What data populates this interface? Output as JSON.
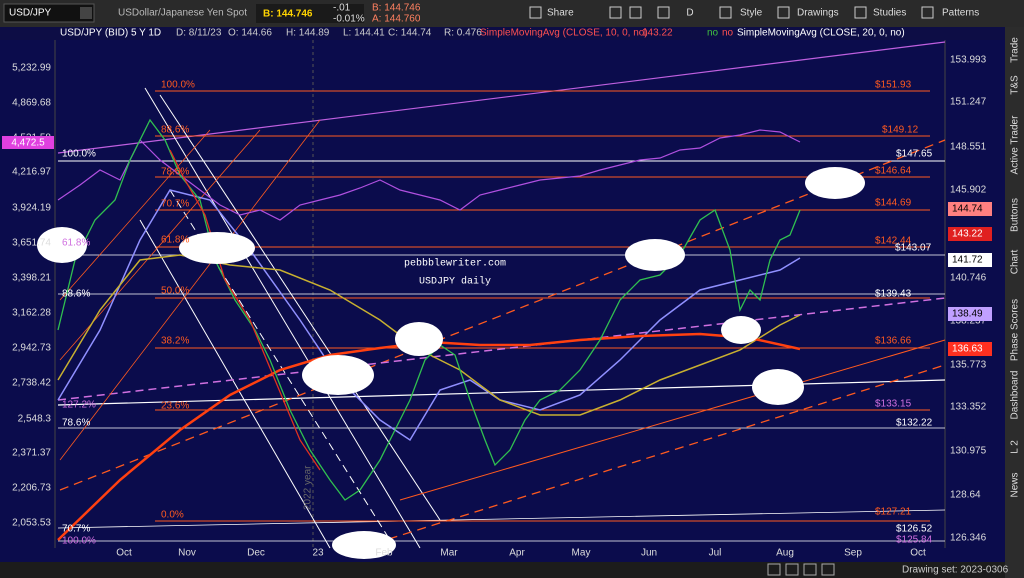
{
  "toolbar": {
    "symbol": "USD/JPY",
    "description": "USDollar/Japanese Yen Spot",
    "bid": "B: 144.746",
    "change": "-.01",
    "change_pct": "-0.01%",
    "quote_bid": "B: 144.746",
    "quote_ask": "A: 144.760",
    "buttons": [
      "Share",
      "D",
      "Style",
      "Drawings",
      "Studies",
      "Patterns"
    ]
  },
  "info_bar": [
    "USD/JPY (BID) 5 Y 1D",
    "D: 8/11/23",
    "O: 144.66",
    "H: 144.89",
    "L: 144.41",
    "C: 144.74",
    "R: 0.476",
    "SimpleMovingAvg (CLOSE, 10, 0, no)",
    "143.22",
    "no",
    "no",
    "SimpleMovingAvg (CLOSE, 20, 0, no)"
  ],
  "left_axis": [
    "5,232.99",
    "4,869.68",
    "4,531.58",
    "4,216.97",
    "3,924.19",
    "3,651.74",
    "3,398.21",
    "3,162.28",
    "2,942.73",
    "2,738.42",
    "2,548.3",
    "2,371.37",
    "2,206.73",
    "2,053.53"
  ],
  "left_marker": "4,472.5",
  "right_axis": [
    "153.993",
    "151.247",
    "148.551",
    "145.902",
    "140.746",
    "138.237",
    "135.773",
    "133.352",
    "130.975",
    "128.64",
    "126.346"
  ],
  "x_axis": [
    "Oct",
    "Nov",
    "Dec",
    "23",
    "Feb",
    "Mar",
    "Apr",
    "May",
    "Jun",
    "Jul",
    "Aug",
    "Sep",
    "Oct"
  ],
  "fib_outer": [
    "100.0%",
    "61.8%",
    "88.6%",
    "127.2%",
    "78.6%",
    "70.7%",
    "100.0%"
  ],
  "fib_inner": [
    "100.0%",
    "88.6%",
    "78.6%",
    "70.7%",
    "61.8%",
    "50.0%",
    "38.2%",
    "23.6%",
    "0.0%"
  ],
  "price_labels": [
    "$151.93",
    "$149.12",
    "$147.65",
    "$146.64",
    "$144.69",
    "$143.07",
    "$142.44",
    "$139.43",
    "$136.66",
    "$133.15",
    "$132.22",
    "$127.21",
    "$126.52",
    "$125.84"
  ],
  "price_boxes": [
    "144.74",
    "143.22",
    "141.72",
    "138.49",
    "136.63"
  ],
  "annotations": {
    "site": "pebbblewriter.com",
    "caption": "USDJPY daily",
    "year": "2022 year"
  },
  "side_tabs": [
    "Trade",
    "T&S",
    "Active Trader",
    "Buttons",
    "Chart",
    "Phase Scores",
    "Dashboard",
    "L 2",
    "News"
  ],
  "footer": "Drawing set: 2023-0306"
}
